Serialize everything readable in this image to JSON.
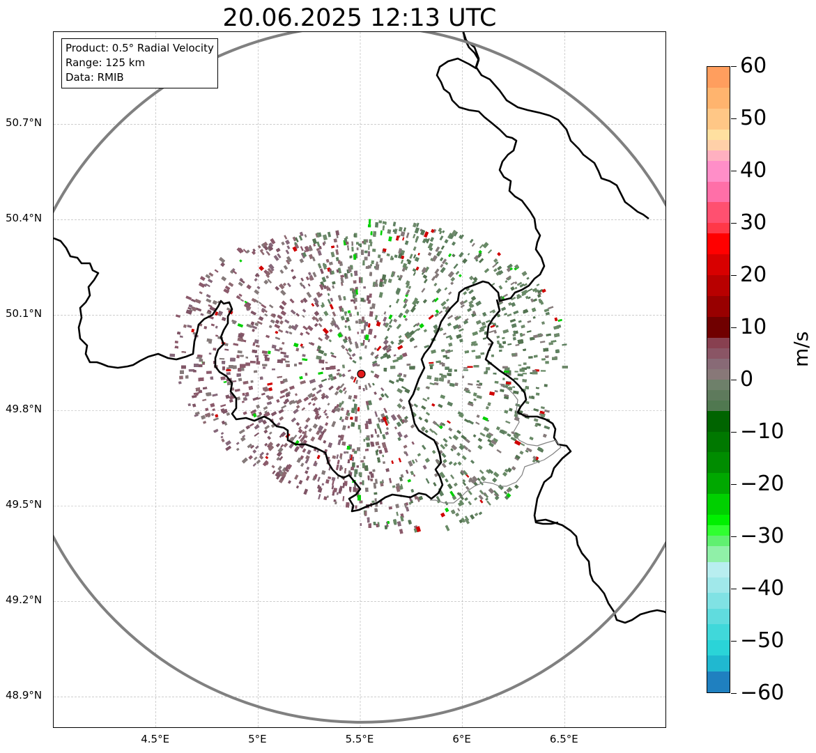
{
  "title": "20.06.2025 12:13 UTC",
  "info": {
    "product": "Product: 0.5° Radial Velocity",
    "range": "Range: 125 km",
    "data": "Data: RMIB"
  },
  "map": {
    "lat_labels": [
      "50.7°N",
      "50.4°N",
      "50.1°N",
      "49.8°N",
      "49.5°N",
      "49.2°N",
      "48.9°N"
    ],
    "lat_values": [
      50.7,
      50.4,
      50.1,
      49.8,
      49.5,
      49.2,
      48.9
    ],
    "lon_labels": [
      "4.5°E",
      "5°E",
      "5.5°E",
      "6°E",
      "6.5°E"
    ],
    "lon_values": [
      4.5,
      5.0,
      5.5,
      6.0,
      6.5
    ],
    "lon_range": [
      4.0,
      7.0
    ],
    "lat_range": [
      48.8,
      50.99
    ],
    "radar_site": {
      "lon": 5.505,
      "lat": 49.915
    },
    "range_ring_km": 125,
    "range_ring_color": "#808080",
    "radar_marker_color": "#e31a1c",
    "border_color": "#000000",
    "secondary_border_color": "#808080",
    "gridline_style": "dashed",
    "velocity_colors": {
      "receding_near": "#8b5a6b",
      "zero": "#857a7a",
      "approaching_near": "#5e8060",
      "strong_receding": "#d00000",
      "strong_approaching": "#00d000"
    }
  },
  "colorbar": {
    "unit": "m/s",
    "min": -60,
    "max": 60,
    "ticks": [
      "60",
      "50",
      "40",
      "30",
      "20",
      "10",
      "0",
      "−10",
      "−20",
      "−30",
      "−40",
      "−50",
      "−60"
    ],
    "tick_values": [
      60,
      50,
      40,
      30,
      20,
      10,
      0,
      -10,
      -20,
      -30,
      -40,
      -50,
      -60
    ],
    "stops": [
      {
        "from": 56,
        "to": 60,
        "color": "#ff9e5e"
      },
      {
        "from": 52,
        "to": 56,
        "color": "#ffb46e"
      },
      {
        "from": 48,
        "to": 52,
        "color": "#ffc786"
      },
      {
        "from": 46,
        "to": 48,
        "color": "#ffe0a0"
      },
      {
        "from": 44,
        "to": 46,
        "color": "#ffd0a8"
      },
      {
        "from": 42,
        "to": 44,
        "color": "#ffb0c0"
      },
      {
        "from": 38,
        "to": 42,
        "color": "#ff8ec8"
      },
      {
        "from": 34,
        "to": 38,
        "color": "#ff6fa8"
      },
      {
        "from": 30,
        "to": 34,
        "color": "#ff5070"
      },
      {
        "from": 28,
        "to": 30,
        "color": "#ff3848"
      },
      {
        "from": 24,
        "to": 28,
        "color": "#ff0000"
      },
      {
        "from": 20,
        "to": 24,
        "color": "#d80000"
      },
      {
        "from": 16,
        "to": 20,
        "color": "#b80000"
      },
      {
        "from": 12,
        "to": 16,
        "color": "#980000"
      },
      {
        "from": 8,
        "to": 12,
        "color": "#700000"
      },
      {
        "from": 6,
        "to": 8,
        "color": "#884050"
      },
      {
        "from": 4,
        "to": 6,
        "color": "#8a5565"
      },
      {
        "from": 2,
        "to": 4,
        "color": "#886a76"
      },
      {
        "from": 0,
        "to": 2,
        "color": "#887878"
      },
      {
        "from": -2,
        "to": 0,
        "color": "#6e806a"
      },
      {
        "from": -4,
        "to": -2,
        "color": "#5e7a5c"
      },
      {
        "from": -6,
        "to": -4,
        "color": "#507850"
      },
      {
        "from": -10,
        "to": -6,
        "color": "#006400"
      },
      {
        "from": -14,
        "to": -10,
        "color": "#007800"
      },
      {
        "from": -18,
        "to": -14,
        "color": "#008c00"
      },
      {
        "from": -22,
        "to": -18,
        "color": "#00a800"
      },
      {
        "from": -26,
        "to": -22,
        "color": "#00d000"
      },
      {
        "from": -28,
        "to": -26,
        "color": "#00f000"
      },
      {
        "from": -30,
        "to": -28,
        "color": "#30ff30"
      },
      {
        "from": -32,
        "to": -30,
        "color": "#60f070"
      },
      {
        "from": -35,
        "to": -32,
        "color": "#90f0a8"
      },
      {
        "from": -38,
        "to": -35,
        "color": "#b8eef0"
      },
      {
        "from": -41,
        "to": -38,
        "color": "#a0e8ea"
      },
      {
        "from": -44,
        "to": -41,
        "color": "#80e2e4"
      },
      {
        "from": -47,
        "to": -44,
        "color": "#60dcde"
      },
      {
        "from": -50,
        "to": -47,
        "color": "#40d8da"
      },
      {
        "from": -53,
        "to": -50,
        "color": "#2ad4d8"
      },
      {
        "from": -56,
        "to": -53,
        "color": "#20b8d0"
      },
      {
        "from": -60,
        "to": -56,
        "color": "#1f80c0"
      }
    ]
  }
}
